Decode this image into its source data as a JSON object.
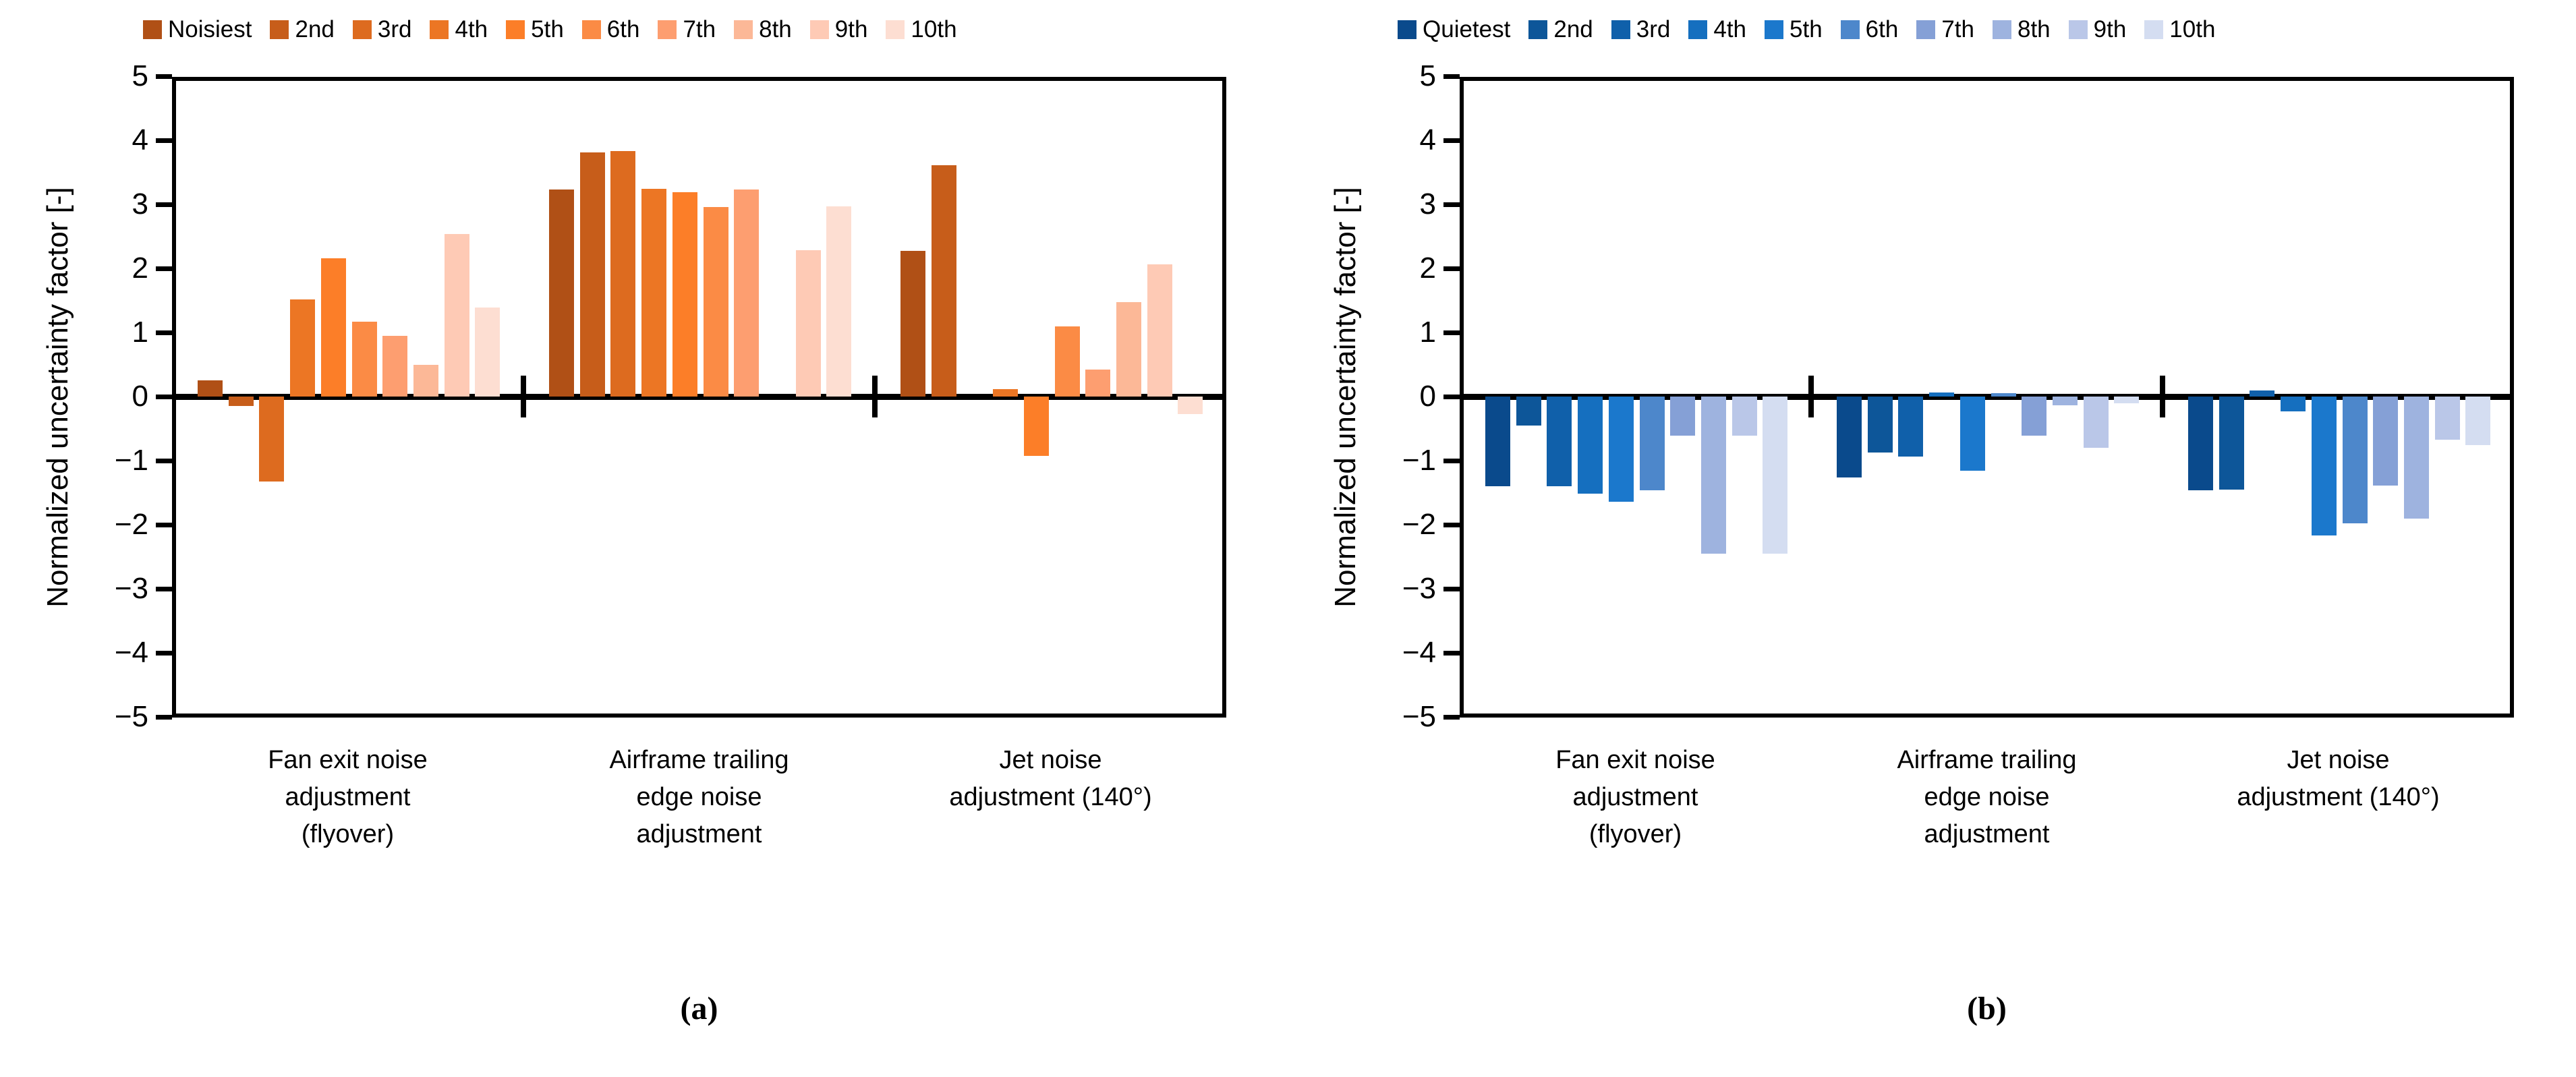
{
  "chart_data": [
    {
      "id": "a",
      "type": "bar",
      "caption": "(a)",
      "ylabel": "Normalized uncertainty factor [-]",
      "ylim": [
        -5,
        5
      ],
      "ytick_step": 1,
      "grid": "off",
      "legend_position": "top",
      "categories": [
        "Fan exit noise\nadjustment\n(flyover)",
        "Airframe trailing\nedge noise\nadjustment",
        "Jet noise\nadjustment (140°)"
      ],
      "series": [
        {
          "name": "Noisiest",
          "color": "#b05016",
          "values": [
            0.25,
            3.23,
            2.27
          ]
        },
        {
          "name": "2nd",
          "color": "#c75d1a",
          "values": [
            -0.15,
            3.81,
            3.61
          ]
        },
        {
          "name": "3rd",
          "color": "#dd6b1f",
          "values": [
            -1.33,
            3.83,
            0
          ]
        },
        {
          "name": "4th",
          "color": "#ec7624",
          "values": [
            1.52,
            3.24,
            0.12
          ]
        },
        {
          "name": "5th",
          "color": "#fc7e28",
          "values": [
            2.16,
            3.19,
            -0.93
          ]
        },
        {
          "name": "6th",
          "color": "#fb8b45",
          "values": [
            1.17,
            2.96,
            1.09
          ]
        },
        {
          "name": "7th",
          "color": "#fd9e70",
          "values": [
            0.95,
            3.23,
            0.42
          ]
        },
        {
          "name": "8th",
          "color": "#fcb897",
          "values": [
            0.5,
            0,
            1.47
          ]
        },
        {
          "name": "9th",
          "color": "#fecab5",
          "values": [
            2.54,
            2.28,
            2.06
          ]
        },
        {
          "name": "10th",
          "color": "#fdded2",
          "values": [
            1.39,
            2.97,
            -0.27
          ]
        }
      ]
    },
    {
      "id": "b",
      "type": "bar",
      "caption": "(b)",
      "ylabel": "Normalized uncertainty factor [-]",
      "ylim": [
        -5,
        5
      ],
      "ytick_step": 1,
      "grid": "off",
      "legend_position": "top",
      "categories": [
        "Fan exit noise\nadjustment\n(flyover)",
        "Airframe trailing\nedge noise\nadjustment",
        "Jet noise\nadjustment (140°)"
      ],
      "series": [
        {
          "name": "Quietest",
          "color": "#0a4a8c",
          "values": [
            -1.4,
            -1.26,
            -1.46
          ]
        },
        {
          "name": "2nd",
          "color": "#0d5699",
          "values": [
            -0.45,
            -0.87,
            -1.45
          ]
        },
        {
          "name": "3rd",
          "color": "#1060aa",
          "values": [
            -1.4,
            -0.94,
            0.09
          ]
        },
        {
          "name": "4th",
          "color": "#156fbf",
          "values": [
            -1.52,
            0.06,
            -0.23
          ]
        },
        {
          "name": "5th",
          "color": "#1b78cc",
          "values": [
            -1.64,
            -1.16,
            -2.17
          ]
        },
        {
          "name": "6th",
          "color": "#4d87cb",
          "values": [
            -1.46,
            0.05,
            -1.98
          ]
        },
        {
          "name": "7th",
          "color": "#85a0d6",
          "values": [
            -0.61,
            -0.61,
            -1.39
          ]
        },
        {
          "name": "8th",
          "color": "#9eb3df",
          "values": [
            -2.45,
            -0.14,
            -1.9
          ]
        },
        {
          "name": "9th",
          "color": "#bac7e8",
          "values": [
            -0.61,
            -0.8,
            -0.67
          ]
        },
        {
          "name": "10th",
          "color": "#d4ddf1",
          "values": [
            -2.45,
            -0.1,
            -0.76
          ]
        }
      ]
    }
  ]
}
